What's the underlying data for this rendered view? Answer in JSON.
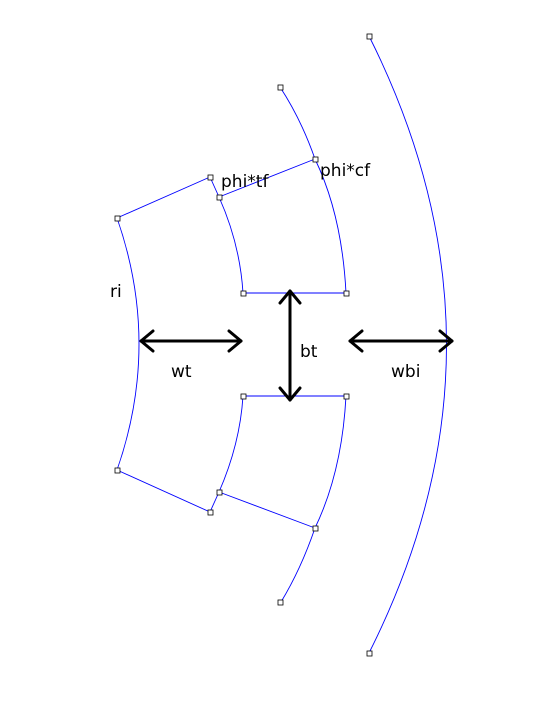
{
  "diagram": {
    "labels": {
      "ri": "ri",
      "wt": "wt",
      "bt": "bt",
      "wbi": "wbi",
      "phi_tf": "phi*tf",
      "phi_cf": "phi*cf"
    },
    "colors": {
      "edge": "#0000ff",
      "arrow": "#000000",
      "vertex_fill": "#ffffff",
      "vertex_stroke": "#000000"
    }
  }
}
